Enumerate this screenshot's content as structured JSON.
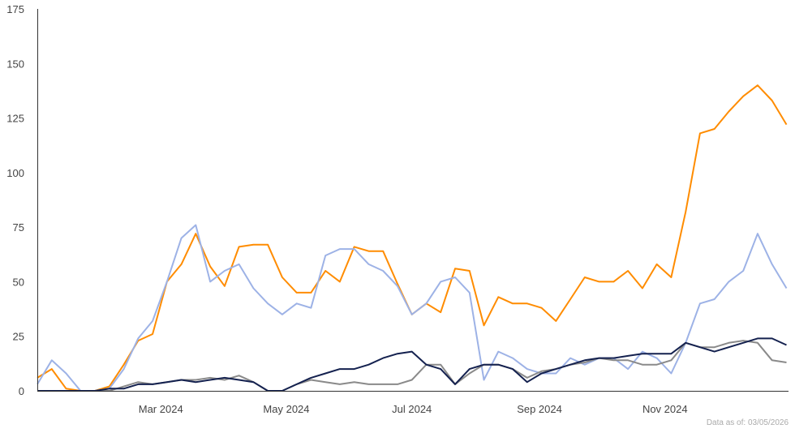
{
  "chart_data": {
    "type": "line",
    "title": "",
    "xlabel": "",
    "ylabel": "",
    "ylim": [
      0,
      175
    ],
    "yticks": [
      "0",
      "25",
      "50",
      "75",
      "100",
      "125",
      "150",
      "175"
    ],
    "xlim": [
      "2024-01-01",
      "2024-12-31"
    ],
    "xticks": [
      {
        "date": "2024-03-01",
        "label": "Mar 2024"
      },
      {
        "date": "2024-05-01",
        "label": "May 2024"
      },
      {
        "date": "2024-07-01",
        "label": "Jul 2024"
      },
      {
        "date": "2024-09-01",
        "label": "Sep 2024"
      },
      {
        "date": "2024-11-01",
        "label": "Nov 2024"
      }
    ],
    "grid": false,
    "legend": "none",
    "x": [
      "2024-01-01",
      "2024-01-08",
      "2024-01-15",
      "2024-01-22",
      "2024-01-29",
      "2024-02-05",
      "2024-02-12",
      "2024-02-19",
      "2024-02-26",
      "2024-03-04",
      "2024-03-11",
      "2024-03-18",
      "2024-03-25",
      "2024-04-01",
      "2024-04-08",
      "2024-04-15",
      "2024-04-22",
      "2024-04-29",
      "2024-05-06",
      "2024-05-13",
      "2024-05-20",
      "2024-05-27",
      "2024-06-03",
      "2024-06-10",
      "2024-06-17",
      "2024-06-24",
      "2024-07-01",
      "2024-07-08",
      "2024-07-15",
      "2024-07-22",
      "2024-07-29",
      "2024-08-05",
      "2024-08-12",
      "2024-08-19",
      "2024-08-26",
      "2024-09-02",
      "2024-09-09",
      "2024-09-16",
      "2024-09-23",
      "2024-09-30",
      "2024-10-07",
      "2024-10-14",
      "2024-10-21",
      "2024-10-28",
      "2024-11-04",
      "2024-11-11",
      "2024-11-18",
      "2024-11-25",
      "2024-12-02",
      "2024-12-09",
      "2024-12-16",
      "2024-12-23",
      "2024-12-30"
    ],
    "series": [
      {
        "color": "#ff8c00",
        "values": [
          6,
          10,
          1,
          0,
          0,
          2,
          12,
          23,
          26,
          50,
          58,
          72,
          57,
          48,
          66,
          67,
          67,
          52,
          45,
          45,
          55,
          50,
          66,
          64,
          64,
          49,
          35,
          40,
          36,
          56,
          55,
          30,
          43,
          40,
          40,
          38,
          32,
          42,
          52,
          50,
          50,
          55,
          47,
          58,
          52,
          82,
          118,
          120,
          128,
          135,
          140,
          133,
          122
        ]
      },
      {
        "color": "#9db2e6",
        "values": [
          3,
          14,
          8,
          0,
          0,
          1,
          10,
          24,
          32,
          50,
          70,
          76,
          50,
          55,
          58,
          47,
          40,
          35,
          40,
          38,
          62,
          65,
          65,
          58,
          55,
          48,
          35,
          40,
          50,
          52,
          45,
          5,
          18,
          15,
          10,
          8,
          8,
          15,
          12,
          15,
          15,
          10,
          18,
          15,
          8,
          22,
          40,
          42,
          50,
          55,
          72,
          58,
          47
        ]
      },
      {
        "color": "#8a8a8a",
        "values": [
          0,
          0,
          0,
          0,
          0,
          0,
          2,
          4,
          3,
          4,
          5,
          5,
          6,
          5,
          7,
          4,
          0,
          0,
          3,
          5,
          4,
          3,
          4,
          3,
          3,
          3,
          5,
          12,
          12,
          3,
          8,
          12,
          12,
          10,
          6,
          9,
          10,
          12,
          13,
          15,
          14,
          14,
          12,
          12,
          14,
          22,
          20,
          20,
          22,
          23,
          22,
          14,
          13
        ]
      },
      {
        "color": "#14214f",
        "values": [
          0,
          0,
          0,
          0,
          0,
          1,
          1,
          3,
          3,
          4,
          5,
          4,
          5,
          6,
          5,
          4,
          0,
          0,
          3,
          6,
          8,
          10,
          10,
          12,
          15,
          17,
          18,
          12,
          10,
          3,
          10,
          12,
          12,
          10,
          4,
          8,
          10,
          12,
          14,
          15,
          15,
          16,
          17,
          17,
          17,
          22,
          20,
          18,
          20,
          22,
          24,
          24,
          21
        ]
      }
    ]
  },
  "footnote": "Data as of: 03/05/2026"
}
